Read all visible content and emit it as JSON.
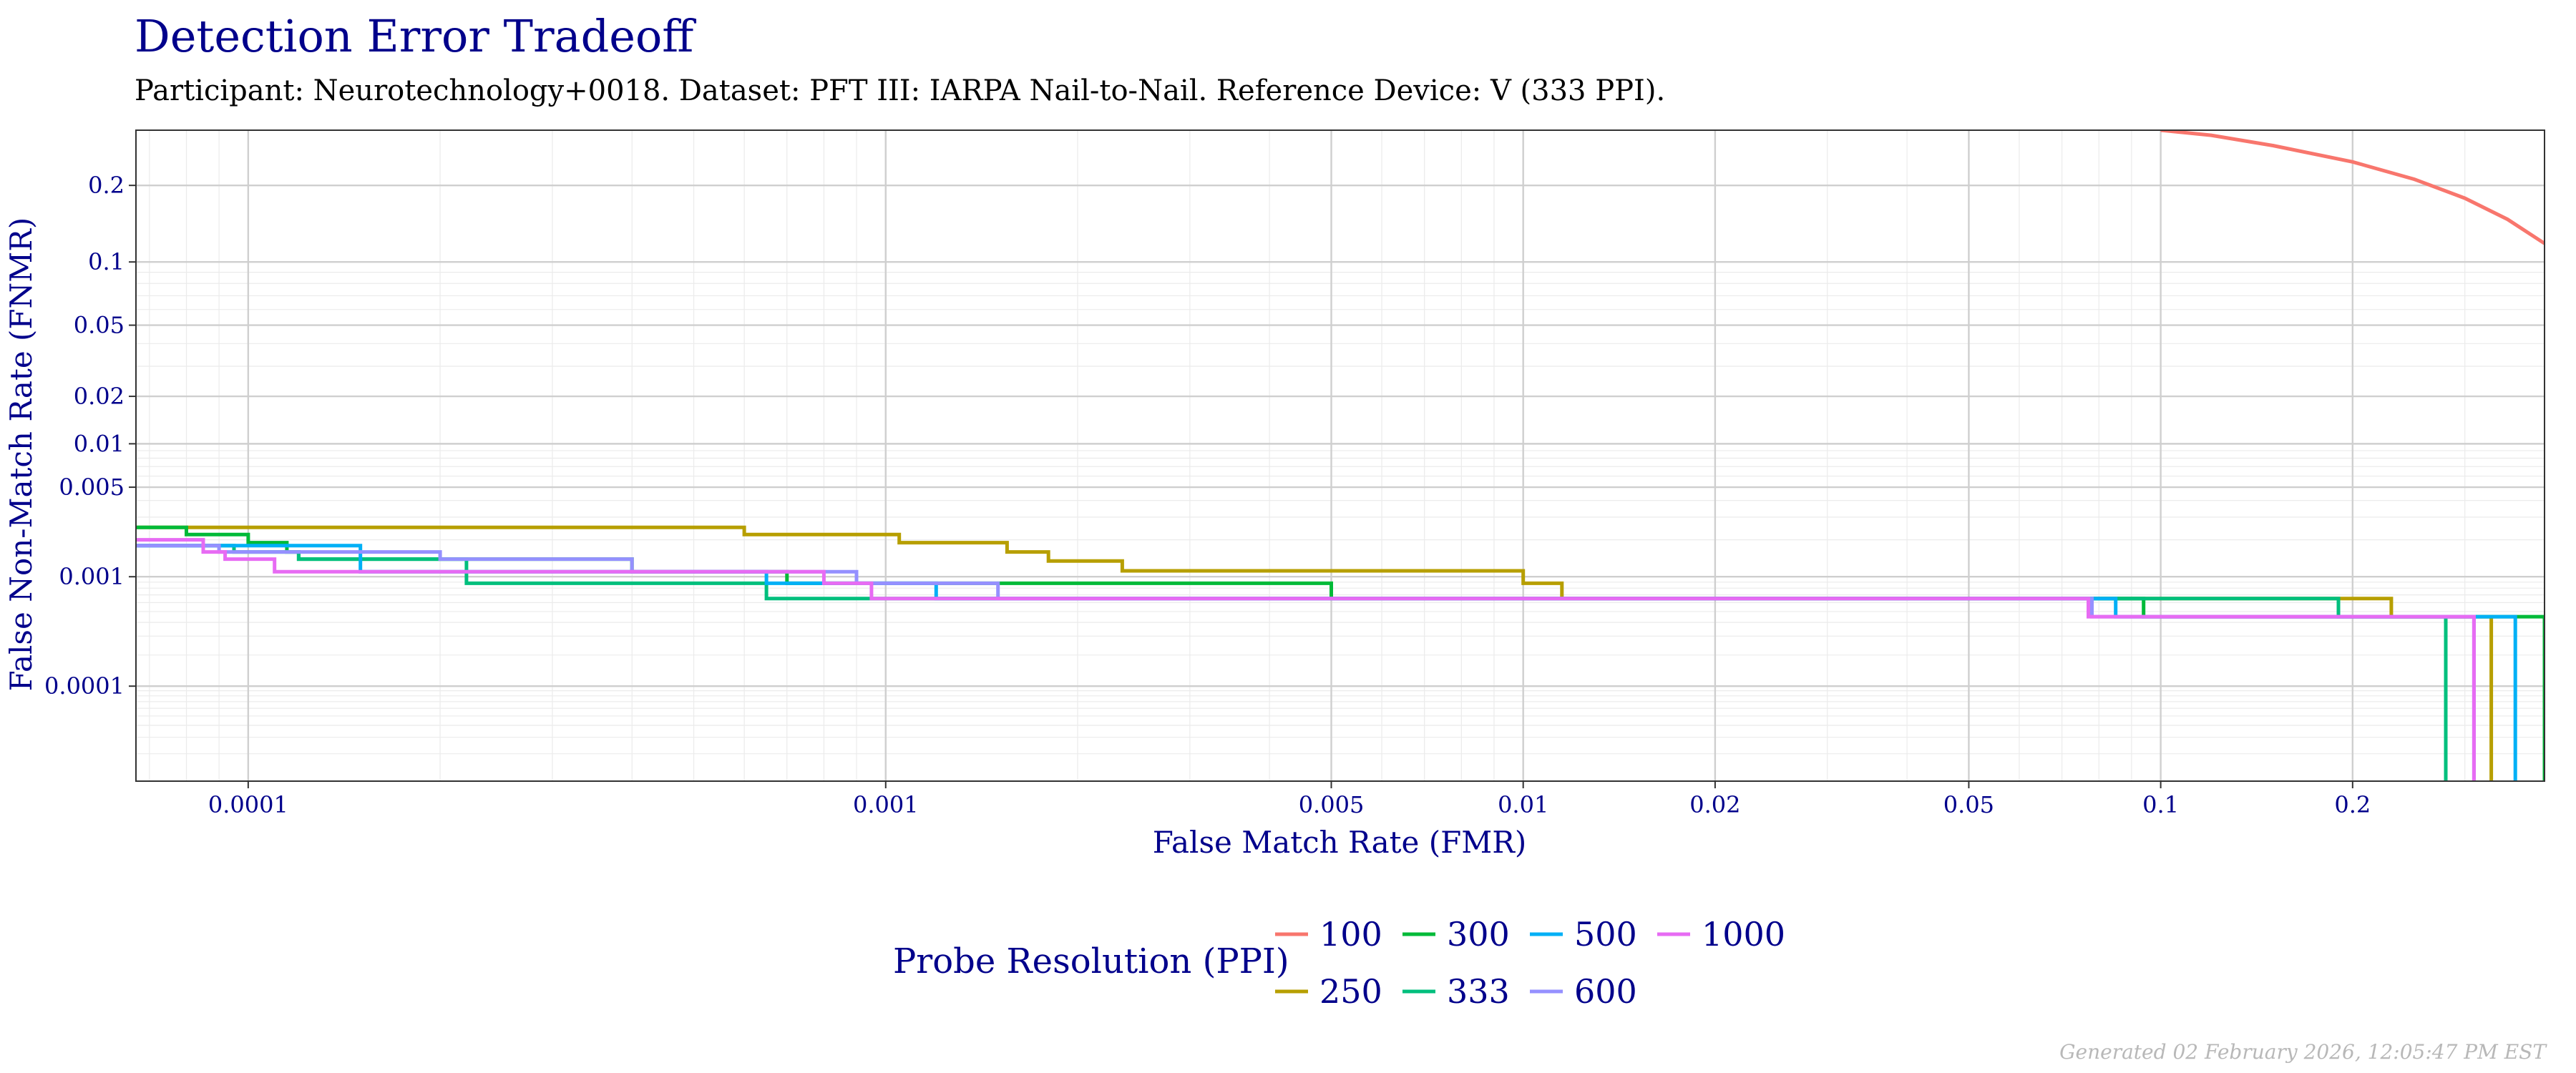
{
  "chart_data": {
    "type": "line",
    "title": "Detection Error Tradeoff",
    "subtitle": "Participant: Neurotechnology+0018. Dataset: PFT III: IARPA Nail-to-Nail. Reference Device: V (333 PPI).",
    "xlabel": "False Match Rate (FMR)",
    "ylabel": "False Non-Match Rate (FNMR)",
    "x_scale": "log",
    "y_scale": "probit",
    "xlim": [
      6.667e-05,
      0.4
    ],
    "ylim": [
      1e-05,
      0.3
    ],
    "x_ticks": [
      {
        "value": 0.0001,
        "label": "0.0001"
      },
      {
        "value": 0.001,
        "label": "0.001"
      },
      {
        "value": 0.005,
        "label": "0.005"
      },
      {
        "value": 0.01,
        "label": "0.01"
      },
      {
        "value": 0.02,
        "label": "0.02"
      },
      {
        "value": 0.05,
        "label": "0.05"
      },
      {
        "value": 0.1,
        "label": "0.1"
      },
      {
        "value": 0.2,
        "label": "0.2"
      }
    ],
    "y_ticks": [
      {
        "value": 0.2,
        "label": "0.2"
      },
      {
        "value": 0.1,
        "label": "0.1"
      },
      {
        "value": 0.05,
        "label": "0.05"
      },
      {
        "value": 0.02,
        "label": "0.02"
      },
      {
        "value": 0.01,
        "label": "0.01"
      },
      {
        "value": 0.005,
        "label": "0.005"
      },
      {
        "value": 0.001,
        "label": "0.001"
      },
      {
        "value": 0.0001,
        "label": "0.0001"
      }
    ],
    "grid": true,
    "legend_title": "Probe Resolution (PPI)",
    "legend_position": "bottom",
    "series": [
      {
        "name": "100",
        "color": "#f8766d",
        "points": [
          [
            0.1,
            0.3
          ],
          [
            0.12,
            0.29
          ],
          [
            0.15,
            0.27
          ],
          [
            0.2,
            0.24
          ],
          [
            0.25,
            0.21
          ],
          [
            0.3,
            0.18
          ],
          [
            0.35,
            0.15
          ],
          [
            0.4,
            0.12
          ]
        ]
      },
      {
        "name": "250",
        "color": "#b79f00",
        "points": [
          [
            6.667e-05,
            0.0025
          ],
          [
            0.0006,
            0.0025
          ],
          [
            0.0006,
            0.0022
          ],
          [
            0.00105,
            0.0022
          ],
          [
            0.00105,
            0.0019
          ],
          [
            0.00155,
            0.0019
          ],
          [
            0.00155,
            0.0016
          ],
          [
            0.0018,
            0.0016
          ],
          [
            0.0018,
            0.00135
          ],
          [
            0.00235,
            0.00135
          ],
          [
            0.00235,
            0.00112
          ],
          [
            0.01,
            0.00112
          ],
          [
            0.01,
            0.00088
          ],
          [
            0.0115,
            0.00088
          ],
          [
            0.0115,
            0.00065
          ],
          [
            0.23,
            0.00065
          ],
          [
            0.23,
            0.00045
          ],
          [
            0.33,
            0.00045
          ],
          [
            0.33,
            1e-05
          ]
        ]
      },
      {
        "name": "300",
        "color": "#00ba38",
        "points": [
          [
            6.667e-05,
            0.0025
          ],
          [
            8e-05,
            0.0025
          ],
          [
            8e-05,
            0.0022
          ],
          [
            0.0001,
            0.0022
          ],
          [
            0.0001,
            0.0019
          ],
          [
            0.000115,
            0.0019
          ],
          [
            0.000115,
            0.0016
          ],
          [
            0.00012,
            0.0016
          ],
          [
            0.00012,
            0.0014
          ],
          [
            0.0004,
            0.0014
          ],
          [
            0.0004,
            0.0011
          ],
          [
            0.0007,
            0.0011
          ],
          [
            0.0007,
            0.00088
          ],
          [
            0.005,
            0.00088
          ],
          [
            0.005,
            0.00065
          ],
          [
            0.094,
            0.00065
          ],
          [
            0.094,
            0.00045
          ],
          [
            0.4,
            0.00045
          ],
          [
            0.4,
            1e-05
          ]
        ]
      },
      {
        "name": "333",
        "color": "#00bf7d",
        "points": [
          [
            6.667e-05,
            0.0018
          ],
          [
            9.5e-05,
            0.0018
          ],
          [
            9.5e-05,
            0.0016
          ],
          [
            0.00012,
            0.0016
          ],
          [
            0.00012,
            0.0014
          ],
          [
            0.00022,
            0.0014
          ],
          [
            0.00022,
            0.00088
          ],
          [
            0.00065,
            0.00088
          ],
          [
            0.00065,
            0.00065
          ],
          [
            0.19,
            0.00065
          ],
          [
            0.19,
            0.00045
          ],
          [
            0.28,
            0.00045
          ],
          [
            0.28,
            1e-05
          ]
        ]
      },
      {
        "name": "500",
        "color": "#00b0f6",
        "points": [
          [
            6.667e-05,
            0.0018
          ],
          [
            0.00015,
            0.0018
          ],
          [
            0.00015,
            0.0011
          ],
          [
            0.00065,
            0.0011
          ],
          [
            0.00065,
            0.00088
          ],
          [
            0.0012,
            0.00088
          ],
          [
            0.0012,
            0.00065
          ],
          [
            0.085,
            0.00065
          ],
          [
            0.085,
            0.00045
          ],
          [
            0.36,
            0.00045
          ],
          [
            0.36,
            1e-05
          ]
        ]
      },
      {
        "name": "600",
        "color": "#9590ff",
        "points": [
          [
            6.667e-05,
            0.0018
          ],
          [
            9e-05,
            0.0018
          ],
          [
            9e-05,
            0.0016
          ],
          [
            0.0002,
            0.0016
          ],
          [
            0.0002,
            0.0014
          ],
          [
            0.0004,
            0.0014
          ],
          [
            0.0004,
            0.0011
          ],
          [
            0.0009,
            0.0011
          ],
          [
            0.0009,
            0.00088
          ],
          [
            0.0015,
            0.00088
          ],
          [
            0.0015,
            0.00065
          ],
          [
            0.078,
            0.00065
          ],
          [
            0.078,
            0.00045
          ],
          [
            0.31,
            0.00045
          ],
          [
            0.31,
            1e-05
          ]
        ]
      },
      {
        "name": "1000",
        "color": "#e76bf3",
        "points": [
          [
            6.667e-05,
            0.002
          ],
          [
            8.5e-05,
            0.002
          ],
          [
            8.5e-05,
            0.0016
          ],
          [
            9.2e-05,
            0.0016
          ],
          [
            9.2e-05,
            0.0014
          ],
          [
            0.00011,
            0.0014
          ],
          [
            0.00011,
            0.0011
          ],
          [
            0.0008,
            0.0011
          ],
          [
            0.0008,
            0.00088
          ],
          [
            0.00095,
            0.00088
          ],
          [
            0.00095,
            0.00065
          ],
          [
            0.077,
            0.00065
          ],
          [
            0.077,
            0.00045
          ],
          [
            0.31,
            0.00045
          ],
          [
            0.31,
            1e-05
          ]
        ]
      }
    ]
  },
  "footer": {
    "generated": "Generated 02 February 2026, 12:05:47 PM EST"
  }
}
